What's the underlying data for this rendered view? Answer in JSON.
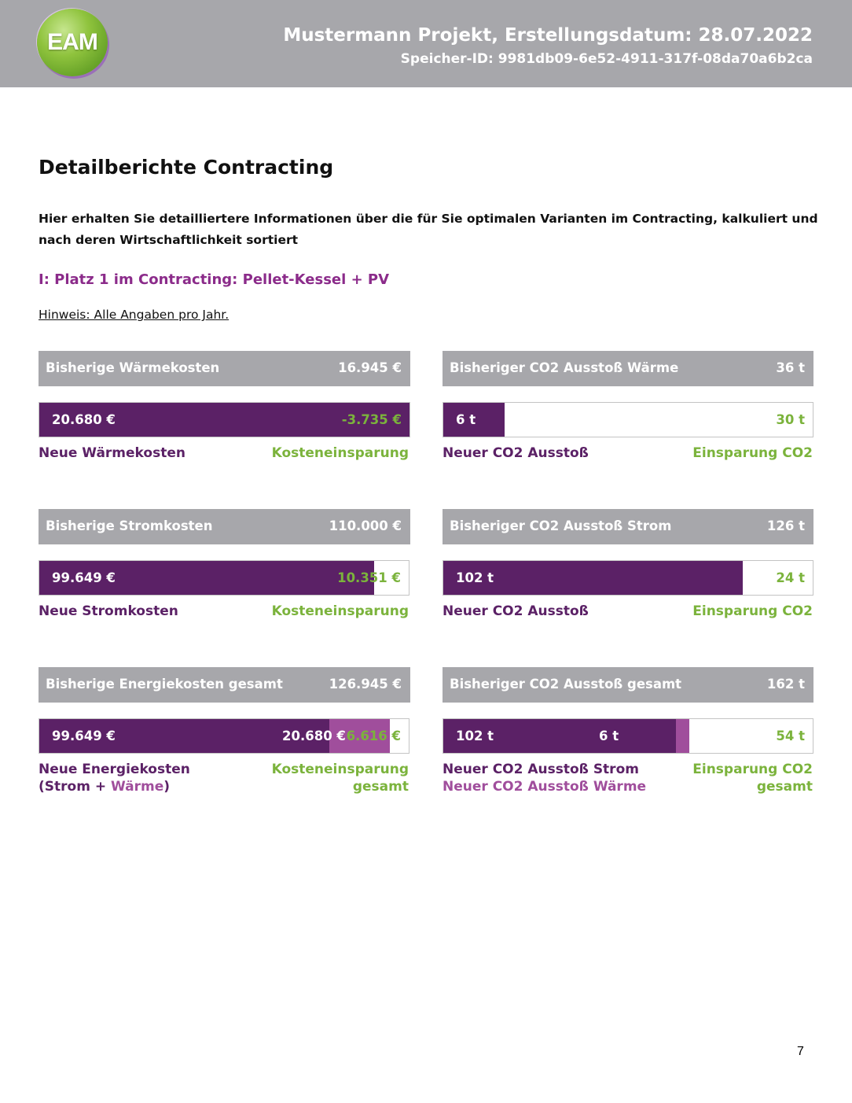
{
  "header": {
    "logo_text": "EAM",
    "title": "Mustermann Projekt, Erstellungsdatum: 28.07.2022",
    "storage_id": "Speicher-ID: 9981db09-6e52-4911-317f-08da70a6b2ca",
    "background_color": "#a7a7ab"
  },
  "page": {
    "title": "Detailberichte Contracting",
    "intro": "Hier erhalten Sie detailliertere Informationen über die für Sie optimalen Varianten im Contracting, kalkuliert und nach deren Wirtschaftlichkeit sortiert",
    "variant_title": "I: Platz 1 im Contracting: Pellet-Kessel + PV",
    "hint": "Hinweis: Alle Angaben pro Jahr.",
    "page_number": "7"
  },
  "colors": {
    "dark_purple": "#5b2166",
    "light_purple": "#a04e9c",
    "green": "#7bb33c",
    "gray": "#a7a7ab"
  },
  "cards": {
    "heat_cost": {
      "prev_label": "Bisherige Wärmekosten",
      "prev_value": "16.945 €",
      "new_value": "20.680 €",
      "saving_value": "-3.735 €",
      "new_share": 1.0,
      "caption_left": "Neue Wärmekosten",
      "caption_right": "Kosteneinsparung"
    },
    "heat_co2": {
      "prev_label": "Bisheriger CO2 Ausstoß Wärme",
      "prev_value": "36 t",
      "new_value": "6 t",
      "saving_value": "30 t",
      "new_share": 0.167,
      "caption_left": "Neuer CO2 Ausstoß",
      "caption_right": "Einsparung CO2"
    },
    "power_cost": {
      "prev_label": "Bisherige Stromkosten",
      "prev_value": "110.000 €",
      "new_value": "99.649 €",
      "saving_value": "10.351 €",
      "new_share": 0.906,
      "caption_left": "Neue Stromkosten",
      "caption_right": "Kosteneinsparung"
    },
    "power_co2": {
      "prev_label": "Bisheriger CO2 Ausstoß Strom",
      "prev_value": "126 t",
      "new_value": "102 t",
      "saving_value": "24 t",
      "new_share": 0.81,
      "caption_left": "Neuer CO2 Ausstoß",
      "caption_right": "Einsparung CO2"
    },
    "total_cost": {
      "prev_label": "Bisherige Energiekosten gesamt",
      "prev_value": "126.945 €",
      "new_value_power": "99.649 €",
      "new_value_heat": "20.680 €",
      "saving_value": "6.616 €",
      "power_share": 0.785,
      "heat_share": 0.163,
      "caption_left_line1": "Neue Energiekosten",
      "caption_left_open": "(Strom + ",
      "caption_left_heat": "Wärme",
      "caption_left_close": ")",
      "caption_right_line1": "Kosteneinsparung",
      "caption_right_line2": "gesamt"
    },
    "total_co2": {
      "prev_label": "Bisheriger CO2 Ausstoß gesamt",
      "prev_value": "162 t",
      "new_value_power": "102 t",
      "new_value_heat": "6 t",
      "saving_value": "54 t",
      "power_share": 0.63,
      "heat_share": 0.037,
      "caption_left_line1": "Neuer CO2 Ausstoß Strom",
      "caption_left_line2": "Neuer CO2 Ausstoß Wärme",
      "caption_right_line1": "Einsparung CO2",
      "caption_right_line2": "gesamt"
    }
  }
}
